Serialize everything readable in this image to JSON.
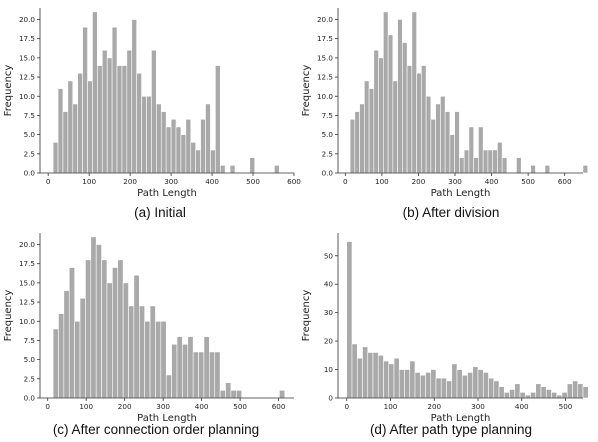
{
  "chart_data": [
    {
      "type": "bar",
      "caption": "(a) Initial",
      "xlabel": "Path Length",
      "ylabel": "Frequency",
      "xlim": [
        -20,
        600
      ],
      "ylim": [
        0,
        21.5
      ],
      "xticks": [
        0,
        100,
        200,
        300,
        400,
        500,
        600
      ],
      "yticks": [
        "0.0",
        "2.5",
        "5.0",
        "7.5",
        "10.0",
        "12.5",
        "15.0",
        "17.5",
        "20.0"
      ],
      "bin_width": 12,
      "bin_start": 12,
      "values": [
        4,
        11,
        8,
        12,
        9,
        13,
        19,
        12,
        21,
        14,
        16,
        15,
        19,
        14,
        14,
        16,
        20,
        13,
        10,
        10,
        16,
        9,
        8,
        6,
        7,
        6,
        5,
        7,
        4,
        3,
        7,
        9,
        3,
        14,
        1,
        0,
        1,
        0,
        0,
        0,
        2,
        0,
        0,
        0,
        0,
        1
      ]
    },
    {
      "type": "bar",
      "caption": "(b) After division",
      "xlabel": "Path Length",
      "ylabel": "Frequency",
      "xlim": [
        -20,
        650
      ],
      "ylim": [
        0,
        21.5
      ],
      "xticks": [
        0,
        100,
        200,
        300,
        400,
        500,
        600
      ],
      "yticks": [
        "0.0",
        "2.5",
        "5.0",
        "7.5",
        "10.0",
        "12.5",
        "15.0",
        "17.5",
        "20.0"
      ],
      "bin_width": 13,
      "bin_start": 13,
      "values": [
        7,
        8,
        9,
        12,
        11,
        16,
        15,
        21,
        18,
        12,
        20,
        17,
        14,
        21,
        13,
        14,
        10,
        7,
        9,
        10,
        8,
        5,
        8,
        2,
        3,
        6,
        2,
        6,
        3,
        3,
        3,
        4,
        2,
        0,
        0,
        2,
        0,
        0,
        1,
        0,
        0,
        1,
        0,
        0,
        0,
        0,
        0,
        0,
        0,
        1
      ]
    },
    {
      "type": "bar",
      "caption": "(c) After connection order planning",
      "xlabel": "Path Length",
      "ylabel": "Frequency",
      "xlim": [
        -20,
        640
      ],
      "ylim": [
        0,
        21.5
      ],
      "xticks": [
        0,
        100,
        200,
        300,
        400,
        500,
        600
      ],
      "yticks": [
        "0.0",
        "2.5",
        "5.0",
        "7.5",
        "10.0",
        "12.5",
        "15.0",
        "17.5",
        "20.0"
      ],
      "bin_width": 14,
      "bin_start": 14,
      "values": [
        9,
        11,
        14,
        17,
        10,
        13,
        18,
        21,
        20,
        18,
        15,
        17,
        18,
        15,
        12,
        16,
        12,
        10,
        12,
        10,
        10,
        3,
        7,
        8,
        7,
        8,
        6,
        6,
        8,
        6,
        6,
        1,
        2,
        1,
        1,
        0,
        0,
        0,
        0,
        0,
        0,
        0,
        1
      ]
    },
    {
      "type": "bar",
      "caption": "(d) After path type planning",
      "xlabel": "Path Length",
      "ylabel": "Frequency",
      "xlim": [
        -20,
        540
      ],
      "ylim": [
        0,
        58
      ],
      "xticks": [
        0,
        100,
        200,
        300,
        400,
        500
      ],
      "yticks": [
        "0",
        "10",
        "20",
        "30",
        "40",
        "50"
      ],
      "bin_width": 12,
      "bin_start": 0,
      "values": [
        55,
        19,
        14,
        18,
        16,
        16,
        15,
        13,
        12,
        14,
        10,
        10,
        13,
        9,
        8,
        9,
        10,
        7,
        7,
        6,
        12,
        10,
        8,
        9,
        11,
        10,
        9,
        7,
        6,
        4,
        2,
        3,
        5,
        2,
        1,
        2,
        5,
        4,
        3,
        2,
        1,
        2,
        5,
        6,
        5,
        4,
        0,
        0,
        0,
        0,
        0,
        0,
        1
      ]
    }
  ]
}
